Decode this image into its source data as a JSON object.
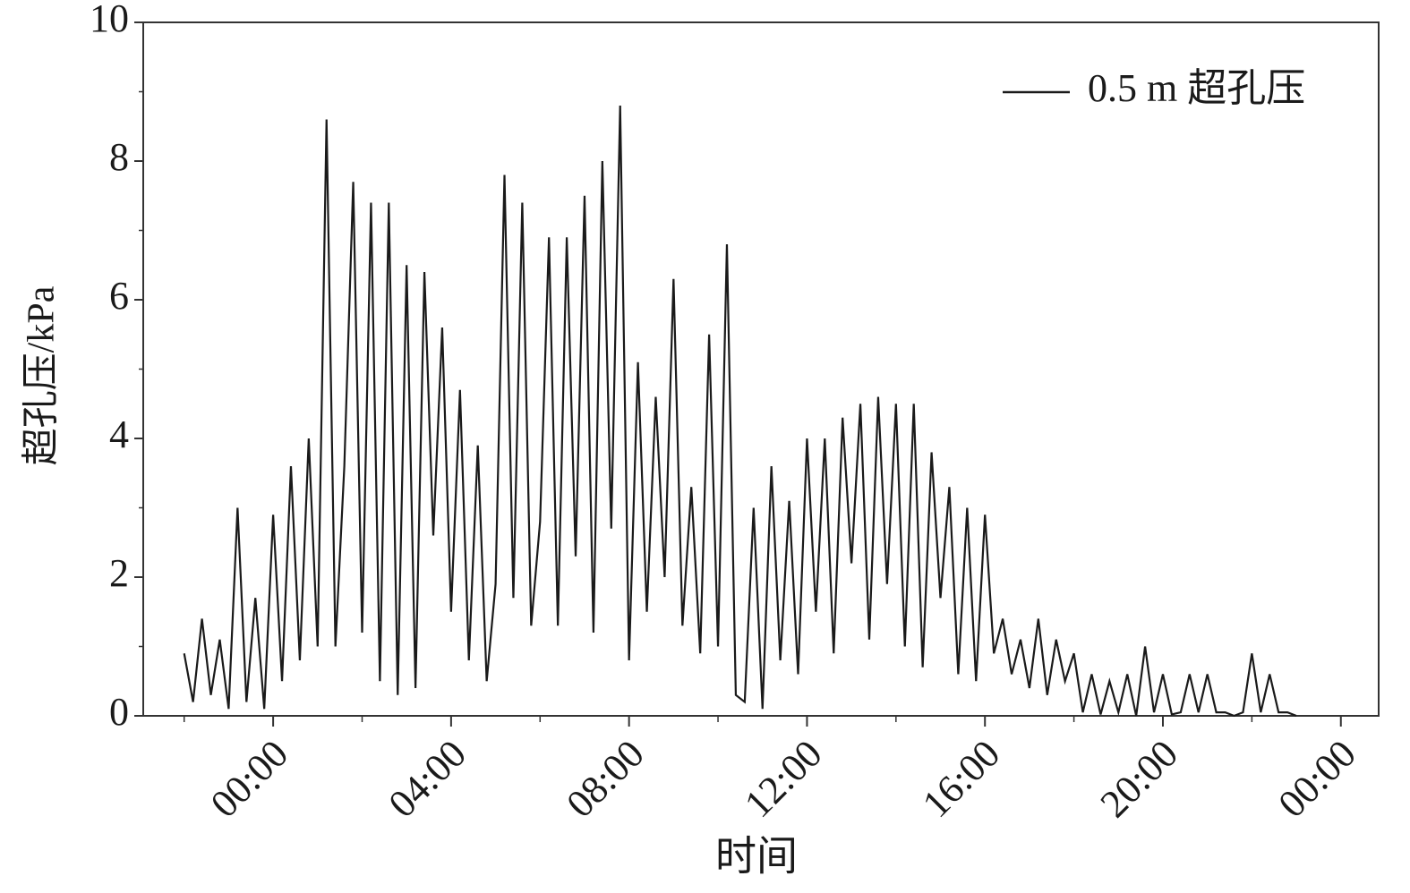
{
  "chart_data": {
    "type": "line",
    "xlabel": "时间",
    "ylabel": "超孔压/kPa",
    "x": [
      -2,
      -1.8,
      -1.6,
      -1.4,
      -1.2,
      -1,
      -0.8,
      -0.6,
      -0.4,
      -0.2,
      0,
      0.2,
      0.4,
      0.6,
      0.8,
      1,
      1.2,
      1.4,
      1.6,
      1.8,
      2,
      2.2,
      2.4,
      2.6,
      2.8,
      3,
      3.2,
      3.4,
      3.6,
      3.8,
      4,
      4.2,
      4.4,
      4.6,
      4.8,
      5,
      5.2,
      5.4,
      5.6,
      5.8,
      6,
      6.2,
      6.4,
      6.6,
      6.8,
      7,
      7.2,
      7.4,
      7.6,
      7.8,
      8,
      8.2,
      8.4,
      8.6,
      8.8,
      9,
      9.2,
      9.4,
      9.6,
      9.8,
      10,
      10.2,
      10.4,
      10.6,
      10.8,
      11,
      11.2,
      11.4,
      11.6,
      11.8,
      12,
      12.2,
      12.4,
      12.6,
      12.8,
      13,
      13.2,
      13.4,
      13.6,
      13.8,
      14,
      14.2,
      14.4,
      14.6,
      14.8,
      15,
      15.2,
      15.4,
      15.6,
      15.8,
      16,
      16.2,
      16.4,
      16.6,
      16.8,
      17,
      17.2,
      17.4,
      17.6,
      17.8,
      18,
      18.2,
      18.4,
      18.6,
      18.8,
      19,
      19.2,
      19.4,
      19.6,
      19.8,
      20,
      20.2,
      20.4,
      20.6,
      20.8,
      21,
      21.2,
      21.4,
      21.6,
      21.8,
      22,
      22.2,
      22.4,
      22.6,
      22.8,
      23
    ],
    "series": [
      {
        "name": "0.5 m 超孔压",
        "color": "#1a1a1a",
        "values": [
          0.9,
          0.2,
          1.4,
          0.3,
          1.1,
          0.1,
          3.0,
          0.2,
          1.7,
          0.1,
          2.9,
          0.5,
          3.6,
          0.8,
          4.0,
          1.0,
          8.6,
          1.0,
          3.6,
          7.7,
          1.2,
          7.4,
          0.5,
          7.4,
          0.3,
          6.5,
          0.4,
          6.4,
          2.6,
          5.6,
          1.5,
          4.7,
          0.8,
          3.9,
          0.5,
          1.9,
          7.8,
          1.7,
          7.4,
          1.3,
          2.8,
          6.9,
          1.3,
          6.9,
          2.3,
          7.5,
          1.2,
          8.0,
          2.7,
          8.8,
          0.8,
          5.1,
          1.5,
          4.6,
          2.0,
          6.3,
          1.3,
          3.3,
          0.9,
          5.5,
          1.0,
          6.8,
          0.3,
          0.2,
          3.0,
          0.1,
          3.6,
          0.8,
          3.1,
          0.6,
          4.0,
          1.5,
          4.0,
          0.9,
          4.3,
          2.2,
          4.5,
          1.1,
          4.6,
          1.9,
          4.5,
          1.0,
          4.5,
          0.7,
          3.8,
          1.7,
          3.3,
          0.6,
          3.0,
          0.5,
          2.9,
          0.9,
          1.4,
          0.6,
          1.1,
          0.4,
          1.4,
          0.3,
          1.1,
          0.5,
          0.9,
          0.05,
          0.6,
          0.02,
          0.5,
          0.05,
          0.6,
          0,
          1.0,
          0.05,
          0.6,
          0.02,
          0.05,
          0.6,
          0.05,
          0.6,
          0.05,
          0.05,
          0,
          0.05,
          0.9,
          0.05,
          0.6,
          0.05,
          0.05,
          0
        ]
      }
    ],
    "xlim": [
      -2.92,
      24.85
    ],
    "xticks": [
      {
        "value": 0,
        "label": "00:00"
      },
      {
        "value": 4,
        "label": "04:00"
      },
      {
        "value": 8,
        "label": "08:00"
      },
      {
        "value": 12,
        "label": "12:00"
      },
      {
        "value": 16,
        "label": "16:00"
      },
      {
        "value": 20,
        "label": "20:00"
      },
      {
        "value": 24,
        "label": "00:00"
      }
    ],
    "xminorticks": [
      -2,
      2,
      6,
      10,
      14,
      18,
      22
    ],
    "ylim": [
      0,
      10
    ],
    "yticks": [
      0,
      2,
      4,
      6,
      8,
      10
    ],
    "yminorticks": [
      1,
      3,
      5,
      7,
      9
    ],
    "legend": "upper right",
    "grid": false
  }
}
